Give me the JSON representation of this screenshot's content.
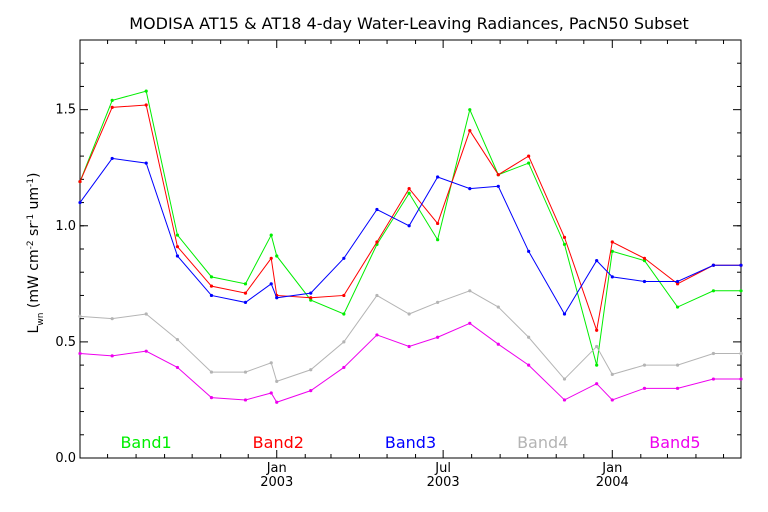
{
  "chart_data": {
    "type": "line",
    "title": "MODISA AT15 & AT18 4-day Water-Leaving Radiances, PacN50 Subset",
    "xlabel": "",
    "ylabel": "L_wn (mW cm^-2 sr^-1 um^-1)",
    "ylabel_parts": {
      "main": "L",
      "sub": "wn",
      "open": " (mW cm",
      "sup1": "-2",
      "mid": " sr",
      "sup2": "-1",
      "mid2": " um",
      "sup3": "-1",
      "close": ")"
    },
    "ylim": [
      0.0,
      1.8
    ],
    "yticks": [
      0.0,
      0.5,
      1.0,
      1.5
    ],
    "ytick_labels": [
      "0.0",
      "0.5",
      "1.0",
      "1.5"
    ],
    "xlim": [
      "2002-06-01",
      "2004-05-20"
    ],
    "xtick_positions": [
      "2003-01-01",
      "2003-07-01",
      "2004-01-01"
    ],
    "xtick_labels": [
      {
        "month": "Jan",
        "year": "2003"
      },
      {
        "month": "Jul",
        "year": "2003"
      },
      {
        "month": "Jan",
        "year": "2004"
      }
    ],
    "x": [
      "2002-06-01",
      "2002-07-06",
      "2002-08-12",
      "2002-09-15",
      "2002-10-22",
      "2002-11-28",
      "2002-12-26",
      "2003-01-01",
      "2003-02-07",
      "2003-03-15",
      "2003-04-20",
      "2003-05-25",
      "2003-06-25",
      "2003-07-30",
      "2003-08-30",
      "2003-10-02",
      "2003-11-10",
      "2003-12-15",
      "2004-01-01",
      "2004-02-05",
      "2004-03-12",
      "2004-04-20",
      "2004-05-20"
    ],
    "series": [
      {
        "name": "Band1",
        "color": "#00ee00",
        "values": [
          1.19,
          1.54,
          1.58,
          0.96,
          0.78,
          0.75,
          0.96,
          0.87,
          0.68,
          0.62,
          0.92,
          1.14,
          0.94,
          1.5,
          1.22,
          1.27,
          0.92,
          0.4,
          0.89,
          0.85,
          0.65,
          0.72,
          0.72
        ]
      },
      {
        "name": "Band2",
        "color": "#ff0000",
        "values": [
          1.19,
          1.51,
          1.52,
          0.91,
          0.74,
          0.71,
          0.86,
          0.7,
          0.69,
          0.7,
          0.93,
          1.16,
          1.01,
          1.41,
          1.22,
          1.3,
          0.95,
          0.55,
          0.93,
          0.86,
          0.75,
          0.83,
          0.83
        ]
      },
      {
        "name": "Band3",
        "color": "#0000ff",
        "values": [
          1.1,
          1.29,
          1.27,
          0.87,
          0.7,
          0.67,
          0.75,
          0.69,
          0.71,
          0.86,
          1.07,
          1.0,
          1.21,
          1.16,
          1.17,
          0.89,
          0.62,
          0.85,
          0.78,
          0.76,
          0.76,
          0.83,
          0.83
        ]
      },
      {
        "name": "Band4",
        "color": "#b4b4b4",
        "values": [
          0.61,
          0.6,
          0.62,
          0.51,
          0.37,
          0.37,
          0.41,
          0.33,
          0.38,
          0.5,
          0.7,
          0.62,
          0.67,
          0.72,
          0.65,
          0.52,
          0.34,
          0.48,
          0.36,
          0.4,
          0.4,
          0.45,
          0.45
        ]
      },
      {
        "name": "Band5",
        "color": "#ee00ee",
        "values": [
          0.45,
          0.44,
          0.46,
          0.39,
          0.26,
          0.25,
          0.28,
          0.24,
          0.29,
          0.39,
          0.53,
          0.48,
          0.52,
          0.58,
          0.49,
          0.4,
          0.25,
          0.32,
          0.25,
          0.3,
          0.3,
          0.34,
          0.34
        ]
      }
    ],
    "legend_position": "bottom"
  }
}
